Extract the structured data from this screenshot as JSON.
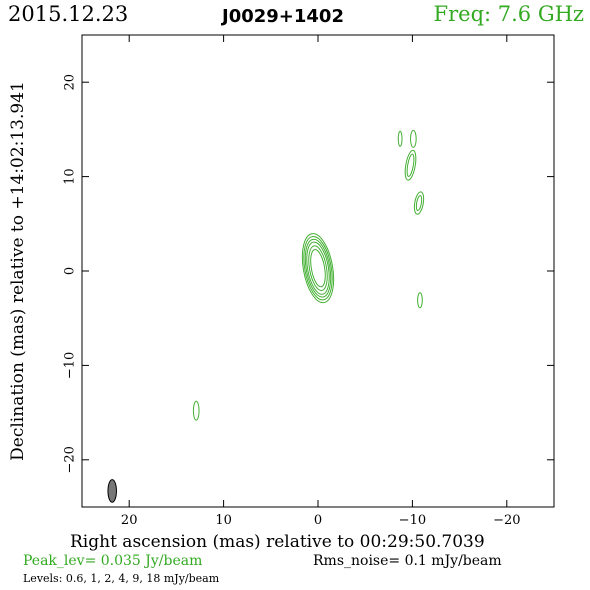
{
  "header": {
    "date": "2015.12.23",
    "source": "J0029+1402",
    "freq": "Freq: 7.6 GHz"
  },
  "colors": {
    "accent_green": "#33aa22",
    "contour": "#44b033",
    "beam_fill": "#777777"
  },
  "footer": {
    "peak": "Peak_lev=  0.035 Jy/beam",
    "rms": "Rms_noise=   0.1 mJy/beam",
    "levels": "Levels: 0.6,    1,    2,    4,    9,   18 mJy/beam"
  },
  "chart_data": {
    "type": "contour",
    "xlabel": "Right ascension (mas) relative to 00:29:50.7039",
    "ylabel": "Declination (mas) relative to +14:02:13.941",
    "xlim": [
      25,
      -25
    ],
    "ylim": [
      -25,
      25
    ],
    "x_ticks": [
      20,
      10,
      0,
      -10,
      -20
    ],
    "y_ticks": [
      20,
      10,
      0,
      -10,
      -20
    ],
    "x_tick_labels": [
      "20",
      "10",
      "0",
      "−10",
      "−20"
    ],
    "y_tick_labels": [
      "20",
      "10",
      "0",
      "−10",
      "−20"
    ],
    "peak_jy_per_beam": 0.035,
    "rms_mjy_per_beam": 0.1,
    "levels_mjy_per_beam": [
      0.6,
      1,
      2,
      4,
      9,
      18
    ],
    "components": [
      {
        "x": 0.0,
        "y": 0.3,
        "rings": [
          [
            0.7,
            2.0
          ],
          [
            0.9,
            2.4
          ],
          [
            1.1,
            2.8
          ],
          [
            1.25,
            3.1
          ],
          [
            1.4,
            3.4
          ],
          [
            1.55,
            3.7
          ]
        ],
        "pa": -10
      },
      {
        "x": -9.8,
        "y": 11.2,
        "rings": [
          [
            0.3,
            1.2
          ],
          [
            0.5,
            1.6
          ]
        ],
        "pa": 10
      },
      {
        "x": -10.1,
        "y": 14.0,
        "rings": [
          [
            0.3,
            0.9
          ]
        ],
        "pa": 0
      },
      {
        "x": -8.7,
        "y": 14.0,
        "rings": [
          [
            0.2,
            0.8
          ]
        ],
        "pa": 0
      },
      {
        "x": -10.7,
        "y": 7.2,
        "rings": [
          [
            0.25,
            0.8
          ],
          [
            0.45,
            1.2
          ]
        ],
        "pa": 10
      },
      {
        "x": -10.8,
        "y": -3.1,
        "rings": [
          [
            0.25,
            0.8
          ]
        ],
        "pa": 0
      },
      {
        "x": 12.9,
        "y": -14.8,
        "rings": [
          [
            0.3,
            1.0
          ]
        ],
        "pa": 0
      }
    ],
    "beam": {
      "x": 21.8,
      "y": -23.3,
      "bmaj": 1.2,
      "bmin": 0.45,
      "pa": 0
    }
  }
}
